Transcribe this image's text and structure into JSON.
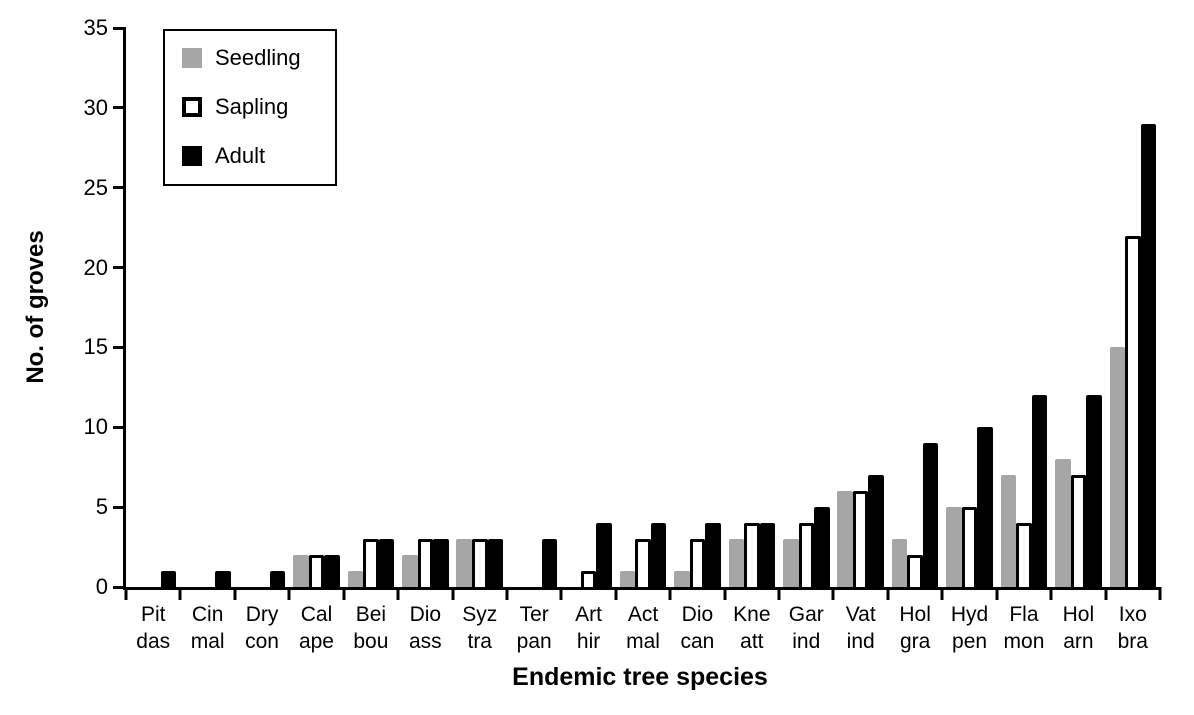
{
  "figure": {
    "background": "#ffffff",
    "axis_color": "#000000"
  },
  "chart_data": {
    "type": "bar",
    "title": "",
    "xlabel": "Endemic tree species",
    "ylabel": "No. of groves",
    "ylim": [
      0,
      35
    ],
    "yticks": [
      0,
      5,
      10,
      15,
      20,
      25,
      30,
      35
    ],
    "grid": false,
    "legend_position": "top-left",
    "categories": [
      "Pit\ndas",
      "Cin\nmal",
      "Dry\ncon",
      "Cal\nape",
      "Bei\nbou",
      "Dio\nass",
      "Syz\ntra",
      "Ter\npan",
      "Art\nhir",
      "Act\nmal",
      "Dio\ncan",
      "Kne\natt",
      "Gar\nind",
      "Vat\nind",
      "Hol\ngra",
      "Hyd\npen",
      "Fla\nmon",
      "Hol\narn",
      "Ixo\nbra"
    ],
    "series": [
      {
        "name": "Seedling",
        "color": "#a6a6a6",
        "values": [
          0,
          0,
          0,
          2,
          1,
          2,
          3,
          0,
          0,
          1,
          1,
          3,
          3,
          6,
          3,
          5,
          7,
          8,
          15
        ]
      },
      {
        "name": "Sapling",
        "color": "#ffffff",
        "border_color": "#000000",
        "values": [
          0,
          0,
          0,
          2,
          3,
          3,
          3,
          0,
          1,
          3,
          3,
          4,
          4,
          6,
          2,
          5,
          4,
          7,
          22
        ]
      },
      {
        "name": "Adult",
        "color": "#000000",
        "values": [
          1,
          1,
          1,
          2,
          3,
          3,
          3,
          3,
          4,
          4,
          4,
          4,
          5,
          7,
          9,
          10,
          12,
          12,
          29
        ]
      }
    ]
  }
}
